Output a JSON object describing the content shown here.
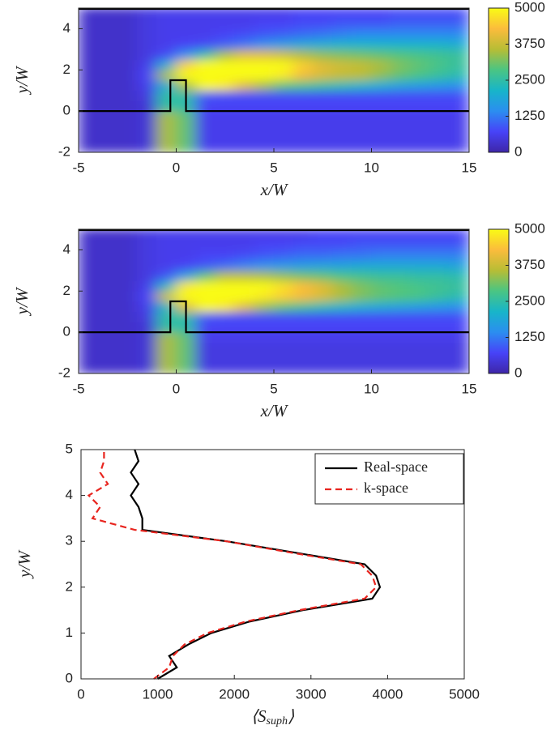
{
  "chart_data": [
    {
      "type": "heatmap",
      "xlabel": "x/W",
      "ylabel": "y/W",
      "xlim": [
        -5,
        15
      ],
      "ylim": [
        -2,
        5
      ],
      "xticks": [
        -5,
        0,
        5,
        10,
        15
      ],
      "yticks": [
        -2,
        0,
        2,
        4
      ],
      "clim": [
        0,
        5000
      ],
      "cticks": [
        0,
        1250,
        2500,
        3750,
        5000
      ],
      "colormap": [
        "#3e26a8",
        "#4743f8",
        "#2b8ef0",
        "#17b5c9",
        "#4ac583",
        "#b7bd35",
        "#fbbc3c",
        "#f9fb15"
      ],
      "x": [
        -4.5,
        -3.5,
        -2.5,
        -1.5,
        -0.5,
        0.5,
        1.5,
        2.5,
        3.5,
        4.5,
        5.5,
        6.5,
        7.5,
        8.5,
        9.5,
        10.5,
        11.5,
        12.5,
        13.5,
        14.5
      ],
      "y": [
        -1.75,
        -1.25,
        -0.75,
        -0.25,
        0.25,
        0.75,
        1.25,
        1.75,
        2.25,
        2.75,
        3.25,
        3.75,
        4.25,
        4.75
      ],
      "z": [
        [
          300,
          300,
          300,
          400,
          3500,
          3000,
          600,
          600,
          600,
          600,
          600,
          600,
          600,
          600,
          600,
          600,
          600,
          600,
          600,
          600
        ],
        [
          300,
          300,
          300,
          400,
          3500,
          3000,
          600,
          600,
          600,
          600,
          600,
          600,
          600,
          600,
          600,
          600,
          600,
          600,
          600,
          600
        ],
        [
          300,
          300,
          300,
          400,
          3500,
          3000,
          600,
          600,
          600,
          600,
          600,
          600,
          600,
          600,
          600,
          600,
          600,
          600,
          600,
          600
        ],
        [
          300,
          300,
          300,
          400,
          3500,
          3000,
          600,
          600,
          600,
          600,
          600,
          600,
          600,
          600,
          600,
          600,
          600,
          600,
          600,
          600
        ],
        [
          300,
          300,
          300,
          400,
          2500,
          2500,
          700,
          700,
          700,
          700,
          700,
          700,
          700,
          700,
          700,
          700,
          700,
          700,
          700,
          700
        ],
        [
          300,
          300,
          300,
          500,
          2500,
          2500,
          900,
          800,
          800,
          800,
          800,
          800,
          800,
          800,
          800,
          800,
          800,
          800,
          800,
          800
        ],
        [
          300,
          300,
          300,
          600,
          2000,
          3500,
          5000,
          4800,
          4000,
          3500,
          3000,
          2800,
          2600,
          2400,
          2200,
          2000,
          1800,
          1700,
          1600,
          1500
        ],
        [
          300,
          300,
          300,
          700,
          3500,
          5000,
          5000,
          5000,
          5000,
          5000,
          4800,
          4200,
          3900,
          3700,
          3600,
          3300,
          3000,
          2800,
          2600,
          2400
        ],
        [
          300,
          300,
          300,
          600,
          2000,
          4500,
          5000,
          5000,
          5000,
          5000,
          5000,
          4500,
          4000,
          3800,
          3700,
          3500,
          3200,
          3000,
          2800,
          2600
        ],
        [
          300,
          300,
          300,
          500,
          800,
          1500,
          2500,
          3500,
          4000,
          4000,
          3800,
          3500,
          3300,
          3200,
          3100,
          3000,
          2900,
          2800,
          2700,
          2600
        ],
        [
          300,
          300,
          300,
          500,
          600,
          700,
          800,
          1000,
          1200,
          1500,
          1700,
          1900,
          2000,
          2100,
          2100,
          2100,
          2100,
          2100,
          2100,
          2000
        ],
        [
          300,
          300,
          300,
          500,
          600,
          600,
          600,
          700,
          800,
          900,
          1000,
          1100,
          1200,
          1300,
          1400,
          1400,
          1400,
          1400,
          1400,
          1400
        ],
        [
          300,
          300,
          300,
          500,
          600,
          600,
          600,
          600,
          600,
          700,
          700,
          800,
          800,
          900,
          900,
          900,
          1000,
          1000,
          1000,
          1000
        ],
        [
          300,
          300,
          300,
          500,
          600,
          600,
          600,
          600,
          600,
          600,
          600,
          700,
          700,
          700,
          700,
          700,
          800,
          800,
          800,
          800
        ]
      ]
    },
    {
      "type": "heatmap",
      "xlabel": "x/W",
      "ylabel": "y/W",
      "xlim": [
        -5,
        15
      ],
      "ylim": [
        -2,
        5
      ],
      "xticks": [
        -5,
        0,
        5,
        10,
        15
      ],
      "yticks": [
        -2,
        0,
        2,
        4
      ],
      "clim": [
        0,
        5000
      ],
      "cticks": [
        0,
        1250,
        2500,
        3750,
        5000
      ],
      "colormap": [
        "#3e26a8",
        "#4743f8",
        "#2b8ef0",
        "#17b5c9",
        "#4ac583",
        "#b7bd35",
        "#fbbc3c",
        "#f9fb15"
      ],
      "x": [
        -4.5,
        -3.5,
        -2.5,
        -1.5,
        -0.5,
        0.5,
        1.5,
        2.5,
        3.5,
        4.5,
        5.5,
        6.5,
        7.5,
        8.5,
        9.5,
        10.5,
        11.5,
        12.5,
        13.5,
        14.5
      ],
      "y": [
        -1.75,
        -1.25,
        -0.75,
        -0.25,
        0.25,
        0.75,
        1.25,
        1.75,
        2.25,
        2.75,
        3.25,
        3.75,
        4.25,
        4.75
      ],
      "z": [
        [
          300,
          300,
          300,
          400,
          3500,
          3000,
          500,
          500,
          500,
          500,
          500,
          500,
          500,
          500,
          500,
          500,
          500,
          500,
          500,
          500
        ],
        [
          300,
          300,
          300,
          400,
          3500,
          3000,
          500,
          500,
          500,
          500,
          500,
          500,
          500,
          500,
          500,
          500,
          500,
          500,
          500,
          500
        ],
        [
          300,
          300,
          300,
          400,
          3500,
          3000,
          500,
          500,
          500,
          500,
          500,
          500,
          500,
          500,
          500,
          500,
          500,
          500,
          500,
          500
        ],
        [
          300,
          300,
          300,
          400,
          3500,
          3000,
          600,
          600,
          600,
          600,
          600,
          600,
          600,
          600,
          600,
          600,
          600,
          600,
          600,
          600
        ],
        [
          300,
          300,
          300,
          400,
          2500,
          2500,
          700,
          700,
          700,
          700,
          700,
          700,
          700,
          700,
          700,
          700,
          700,
          700,
          700,
          700
        ],
        [
          300,
          300,
          300,
          500,
          2500,
          2500,
          900,
          800,
          800,
          800,
          800,
          800,
          800,
          800,
          800,
          800,
          800,
          800,
          800,
          800
        ],
        [
          300,
          300,
          300,
          600,
          2200,
          4000,
          5000,
          4800,
          4000,
          3400,
          3000,
          2700,
          2400,
          2200,
          2000,
          1900,
          1800,
          1700,
          1600,
          1500
        ],
        [
          300,
          300,
          300,
          700,
          3800,
          5000,
          5000,
          5000,
          5000,
          4800,
          4500,
          4200,
          3900,
          3500,
          3200,
          3000,
          2900,
          2800,
          2600,
          2400
        ],
        [
          300,
          300,
          300,
          600,
          2200,
          4800,
          5000,
          5000,
          5000,
          5000,
          4700,
          4300,
          4000,
          3500,
          3200,
          3000,
          2900,
          2800,
          2700,
          2600
        ],
        [
          300,
          300,
          300,
          500,
          900,
          1800,
          3000,
          3600,
          3600,
          3500,
          3300,
          3100,
          3000,
          2800,
          2700,
          2600,
          2600,
          2500,
          2500,
          2400
        ],
        [
          300,
          300,
          300,
          500,
          600,
          700,
          900,
          1100,
          1300,
          1500,
          1600,
          1700,
          1800,
          1800,
          1900,
          1900,
          1900,
          1900,
          1900,
          1800
        ],
        [
          300,
          300,
          300,
          500,
          600,
          600,
          700,
          700,
          800,
          900,
          1000,
          1100,
          1100,
          1200,
          1200,
          1300,
          1300,
          1300,
          1300,
          1300
        ],
        [
          300,
          300,
          300,
          500,
          600,
          600,
          600,
          600,
          600,
          700,
          700,
          800,
          800,
          800,
          900,
          900,
          900,
          900,
          900,
          900
        ],
        [
          300,
          300,
          300,
          500,
          600,
          600,
          600,
          600,
          600,
          600,
          600,
          600,
          700,
          700,
          700,
          700,
          700,
          700,
          700,
          700
        ]
      ]
    },
    {
      "type": "profile",
      "xlabel": [
        "⟨S",
        "suph",
        "⟩"
      ],
      "ylabel": "y/W",
      "xlim": [
        0,
        5000
      ],
      "ylim": [
        0,
        5
      ],
      "xticks": [
        0,
        1000,
        2000,
        3000,
        4000,
        5000
      ],
      "yticks": [
        0,
        1,
        2,
        3,
        4,
        5
      ],
      "legend": "northeast",
      "y": [
        0,
        0.25,
        0.5,
        0.75,
        1,
        1.25,
        1.5,
        1.75,
        2,
        2.25,
        2.5,
        2.75,
        3,
        3.25,
        3.5,
        3.75,
        4,
        4.25,
        4.5,
        4.75,
        5
      ],
      "series": [
        {
          "name": "Real-space",
          "color": "#000000",
          "dash": false,
          "values": [
            1000,
            1250,
            1150,
            1400,
            1700,
            2200,
            2900,
            3800,
            3900,
            3850,
            3700,
            2800,
            1900,
            800,
            800,
            750,
            650,
            750,
            650,
            750,
            700
          ]
        },
        {
          "name": "k-space",
          "color": "#e8251f",
          "dash": true,
          "values": [
            950,
            1150,
            1200,
            1350,
            1650,
            2150,
            2850,
            3700,
            3850,
            3800,
            3650,
            2750,
            1900,
            700,
            150,
            250,
            100,
            350,
            250,
            300,
            300
          ]
        }
      ]
    }
  ]
}
